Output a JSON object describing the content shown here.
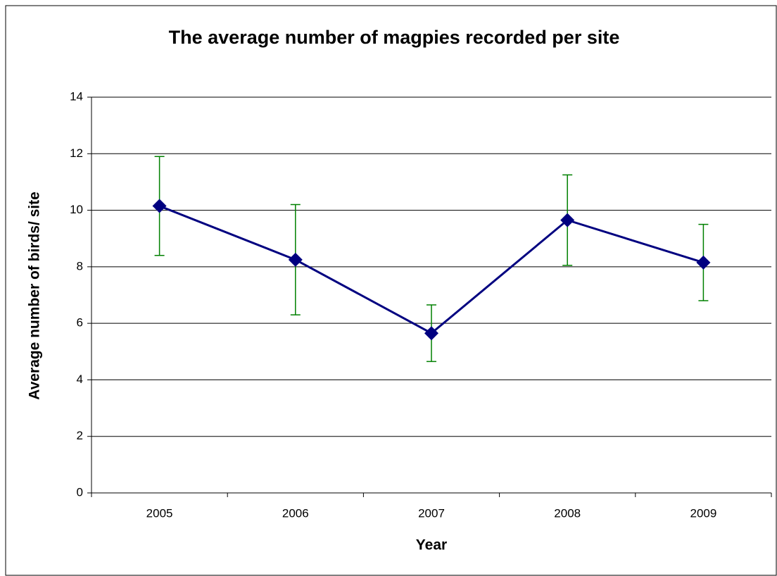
{
  "chart_data": {
    "type": "line",
    "title": "The average number of magpies recorded per site",
    "xlabel": "Year",
    "ylabel": "Average number of birds/ site",
    "categories": [
      "2005",
      "2006",
      "2007",
      "2008",
      "2009"
    ],
    "series": [
      {
        "color": "#000080",
        "error_color": "#008000",
        "values": [
          10.15,
          8.25,
          5.65,
          9.65,
          8.15
        ],
        "errors": [
          1.75,
          1.95,
          1.0,
          1.6,
          1.35
        ]
      }
    ],
    "ylim": [
      0,
      14
    ],
    "yticks": [
      0,
      2,
      4,
      6,
      8,
      10,
      12,
      14
    ],
    "grid": true
  }
}
